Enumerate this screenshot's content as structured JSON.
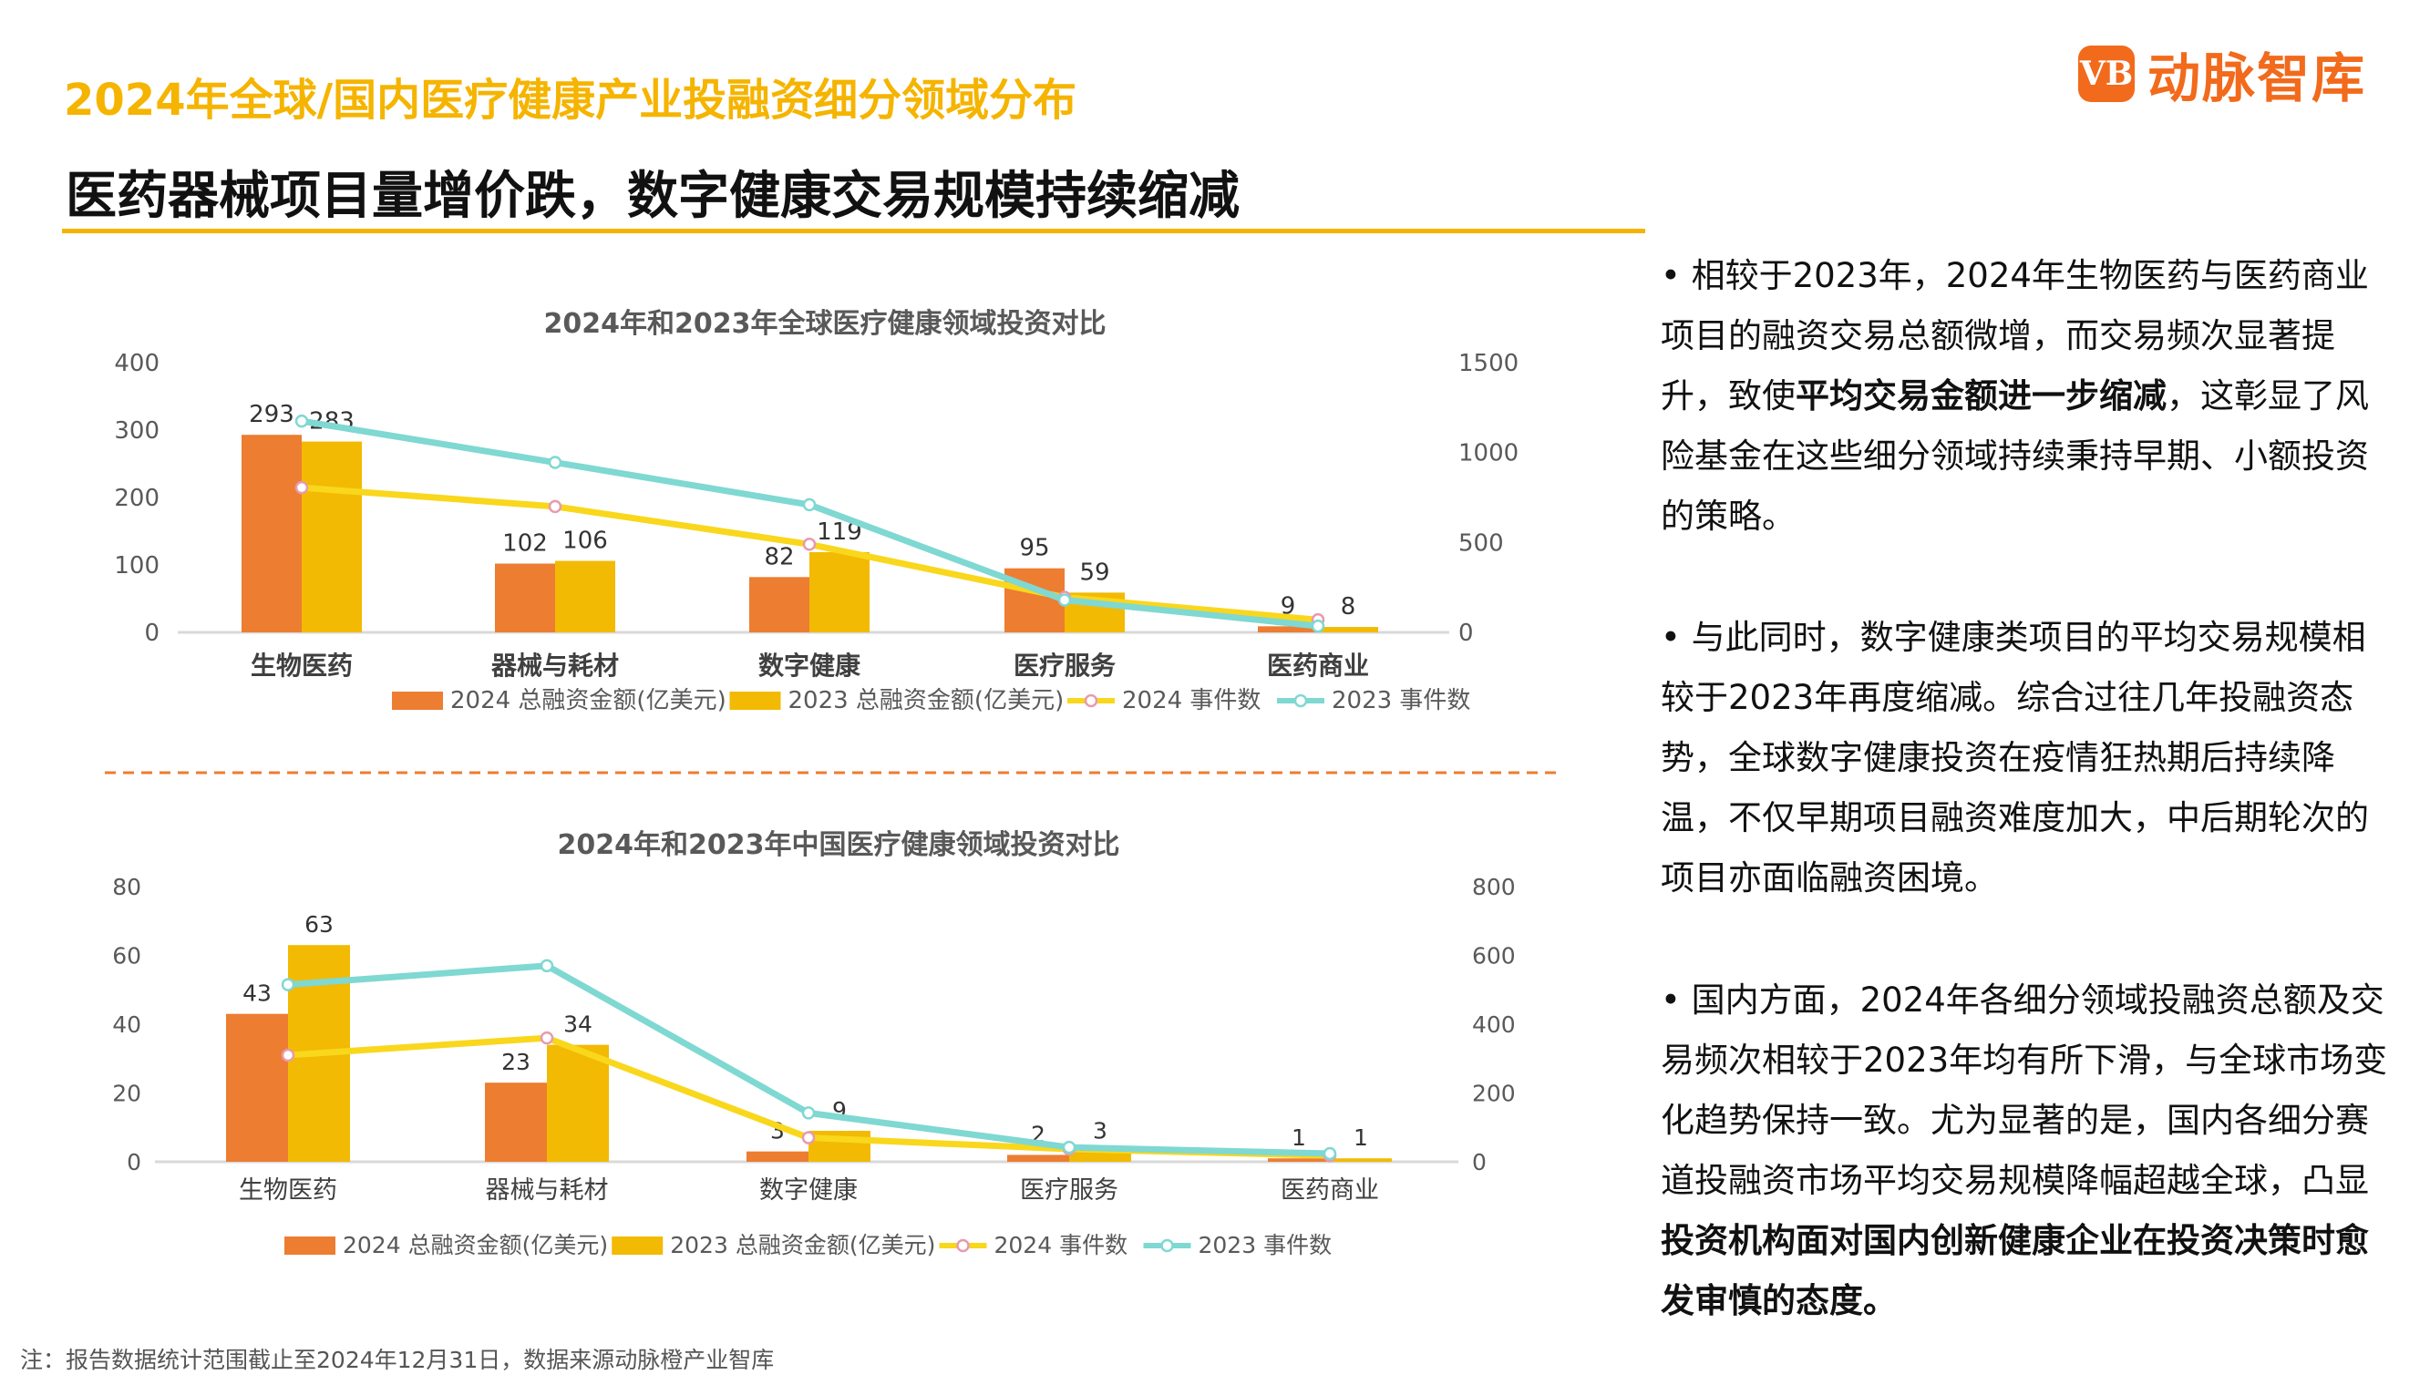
{
  "header": {
    "title": "2024年全球/国内医疗健康产业投融资细分领域分布",
    "subtitle": "医药器械项目量增价跌，数字健康交易规模持续缩减",
    "logo_mark": "VB",
    "logo_text": "动脉智库"
  },
  "colors": {
    "title": "#F5B400",
    "bar_2024": "#ED7D31",
    "bar_2023": "#F2BA02",
    "line_2024": "#F9D71C",
    "line_2023": "#7FD8D2"
  },
  "paragraphs": [
    [
      {
        "text": "• 相较于2023年，2024年生物医药与医药商业项目的融资交易总额微增，而交易频次显著提升，致使",
        "bold": false
      },
      {
        "text": "平均交易金额进一步缩减",
        "bold": true
      },
      {
        "text": "，这彰显了风险基金在这些细分领域持续秉持早期、小额投资的策略。",
        "bold": false
      }
    ],
    [
      {
        "text": "• 与此同时，数字健康类项目的平均交易规模相较于2023年再度缩减。综合过往几年投融资态势，全球数字健康投资在疫情狂热期后持续降温，不仅早期项目融资难度加大，中后期轮次的项目亦面临融资困境。",
        "bold": false
      }
    ],
    [
      {
        "text": "• 国内方面，2024年各细分领域投融资总额及交易频次相较于2023年均有所下滑，与全球市场变化趋势保持一致。尤为显著的是，国内各细分赛道投融资市场平均交易规模降幅超越全球，凸显",
        "bold": false
      },
      {
        "text": "投资机构面对国内创新健康企业在投资决策时愈发审慎的态度。",
        "bold": true
      }
    ]
  ],
  "footnote": "注：报告数据统计范围截止至2024年12月31日，数据来源动脉橙产业智库",
  "chart_data": [
    {
      "type": "bar+line",
      "title": "2024年和2023年全球医疗健康领域投资对比",
      "categories": [
        "生物医药",
        "器械与耗材",
        "数字健康",
        "医疗服务",
        "医药商业"
      ],
      "y_left": {
        "ticks": [
          0,
          100,
          200,
          300,
          400
        ],
        "range": [
          0,
          400
        ]
      },
      "y_right": {
        "ticks": [
          0,
          500,
          1000,
          1500
        ],
        "range": [
          0,
          1500
        ]
      },
      "series": [
        {
          "name": "2024 总融资金额(亿美元)",
          "kind": "bar",
          "axis": "left",
          "values": [
            293,
            102,
            82,
            95,
            9
          ],
          "labels": true
        },
        {
          "name": "2023 总融资金额(亿美元)",
          "kind": "bar",
          "axis": "left",
          "values": [
            283,
            106,
            119,
            59,
            8
          ],
          "labels": true
        },
        {
          "name": "2024 事件数",
          "kind": "line",
          "axis": "right",
          "values": [
            805,
            700,
            490,
            195,
            70
          ]
        },
        {
          "name": "2023 事件数",
          "kind": "line",
          "axis": "right",
          "values": [
            1175,
            945,
            710,
            180,
            35
          ]
        }
      ],
      "legend": "bottom",
      "grid": false
    },
    {
      "type": "bar+line",
      "title": "2024年和2023年中国医疗健康领域投资对比",
      "categories": [
        "生物医药",
        "器械与耗材",
        "数字健康",
        "医疗服务",
        "医药商业"
      ],
      "y_left": {
        "ticks": [
          0,
          20,
          40,
          60,
          80
        ],
        "range": [
          0,
          80
        ]
      },
      "y_right": {
        "ticks": [
          0,
          200,
          400,
          600,
          800
        ],
        "range": [
          0,
          800
        ]
      },
      "series": [
        {
          "name": "2024 总融资金额(亿美元)",
          "kind": "bar",
          "axis": "left",
          "values": [
            43,
            23,
            3,
            2,
            1
          ],
          "labels": true
        },
        {
          "name": "2023 总融资金额(亿美元)",
          "kind": "bar",
          "axis": "left",
          "values": [
            63,
            34,
            9,
            3,
            1
          ],
          "labels": true
        },
        {
          "name": "2024 事件数",
          "kind": "line",
          "axis": "right",
          "values": [
            310,
            360,
            70,
            37,
            18
          ]
        },
        {
          "name": "2023 事件数",
          "kind": "line",
          "axis": "right",
          "values": [
            515,
            570,
            142,
            42,
            24
          ]
        }
      ],
      "legend": "bottom",
      "grid": false
    }
  ]
}
